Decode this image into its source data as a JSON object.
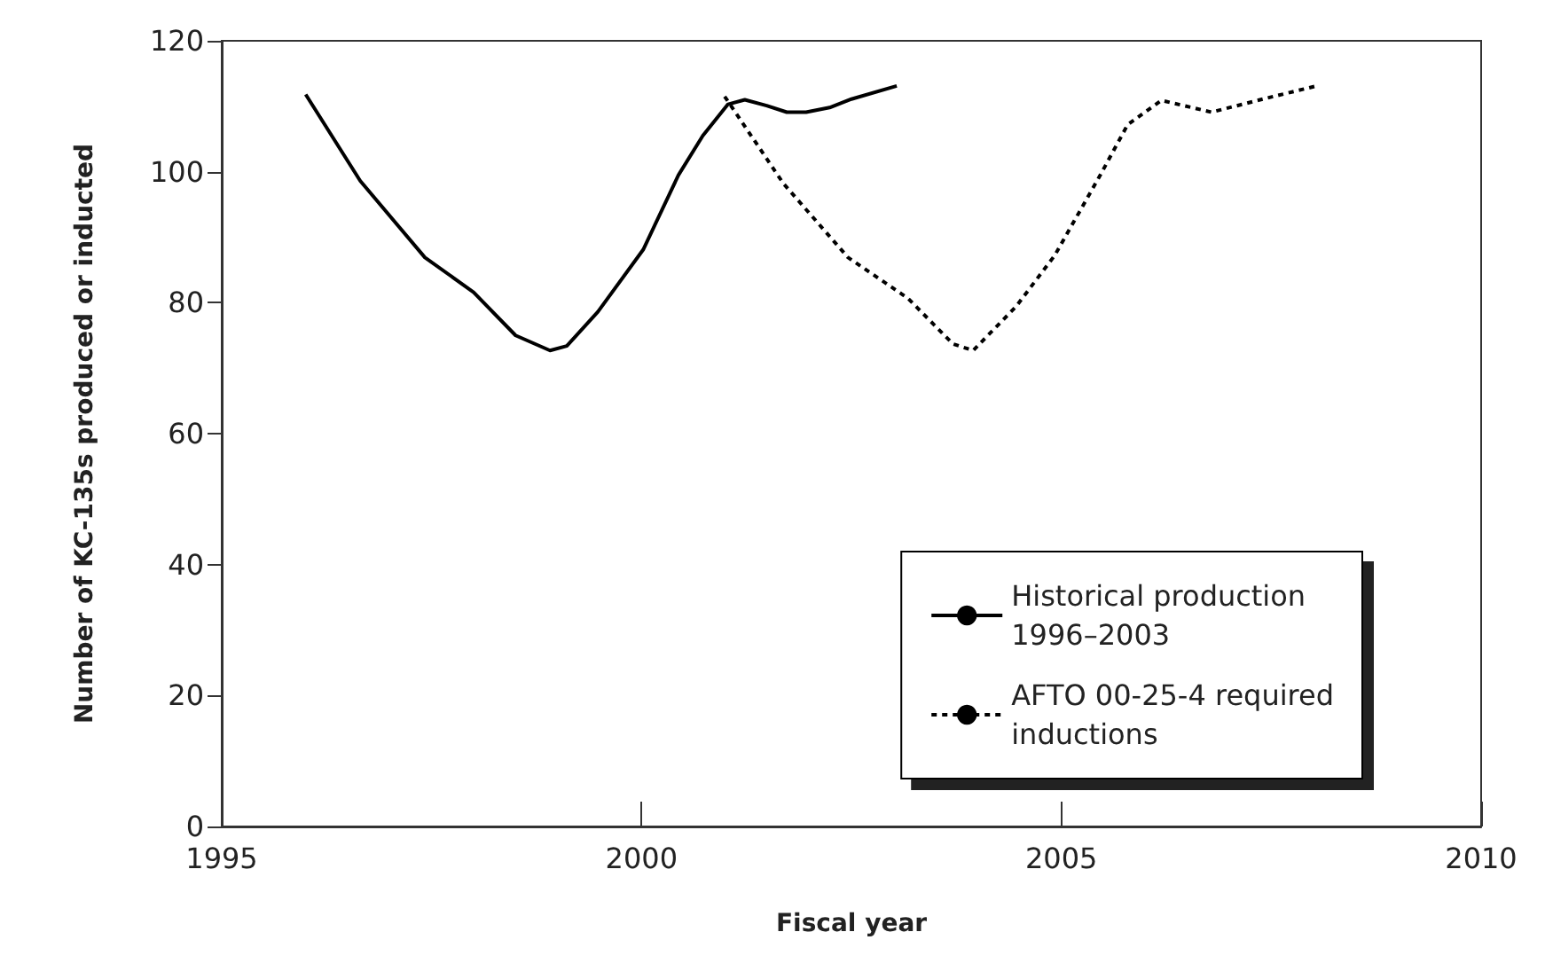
{
  "chart_data": {
    "type": "line",
    "xlabel": "Fiscal year",
    "ylabel": "Number of KC-135s produced or inducted",
    "xlim": [
      1995,
      2010
    ],
    "xticks": [
      1995,
      2000,
      2005,
      2010
    ],
    "ylim": [
      0,
      120
    ],
    "yticks": [
      0,
      20,
      40,
      60,
      80,
      100,
      120
    ],
    "grid": false,
    "legend": "bottom right",
    "marker": "none",
    "series": [
      {
        "name": "Historical production\n1996–2003",
        "color": "#000000",
        "line_style": "solid",
        "x": [
          1996.0,
          1996.65,
          1997.42,
          1998.0,
          1998.5,
          1998.91,
          1999.11,
          1999.48,
          2000.02,
          2000.44,
          2000.73,
          2001.03,
          2001.23,
          2001.49,
          2001.73,
          2001.96,
          2002.24,
          2002.5,
          2003.04
        ],
        "values": [
          111.8,
          98.6,
          86.9,
          81.6,
          75.0,
          72.7,
          73.4,
          78.6,
          88.1,
          99.5,
          105.5,
          110.3,
          111.0,
          110.1,
          109.1,
          109.1,
          109.8,
          111.1,
          113.1
        ]
      },
      {
        "name": "AFTO 00-25-4 required\ninductions",
        "color": "#000000",
        "line_style": "dotted",
        "x": [
          2000.99,
          2001.69,
          2002.46,
          2003.17,
          2003.71,
          2003.95,
          2004.46,
          2004.92,
          2005.46,
          2005.79,
          2006.19,
          2006.79,
          2007.4,
          2008.04
        ],
        "values": [
          111.5,
          98.2,
          86.9,
          80.7,
          73.7,
          72.7,
          79.4,
          87.2,
          99.4,
          107.2,
          110.9,
          109.1,
          111.1,
          113.1
        ]
      }
    ]
  }
}
